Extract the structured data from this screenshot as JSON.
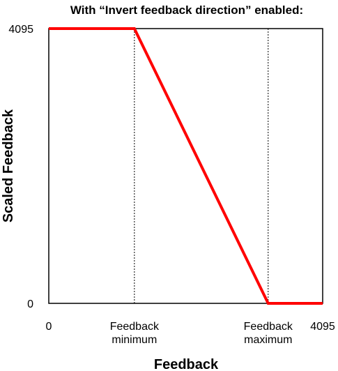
{
  "chart_data": {
    "type": "line",
    "title": "With “Invert feedback direction” enabled:",
    "xlabel": "Feedback",
    "ylabel": "Scaled Feedback",
    "xlim": [
      0,
      4095
    ],
    "ylim": [
      0,
      4095
    ],
    "x_ticks": [
      {
        "value": 0,
        "lines": [
          "0"
        ]
      },
      {
        "value": 1280,
        "lines": [
          "Feedback",
          "minimum"
        ]
      },
      {
        "value": 3280,
        "lines": [
          "Feedback",
          "maximum"
        ]
      },
      {
        "value": 4095,
        "lines": [
          "4095"
        ]
      }
    ],
    "y_ticks": [
      {
        "value": 0,
        "label": "0"
      },
      {
        "value": 4095,
        "label": "4095"
      }
    ],
    "reference_lines_x": [
      1280,
      3280
    ],
    "series": [
      {
        "x": [
          0,
          1280,
          3280,
          4095
        ],
        "y": [
          4095,
          4095,
          0,
          0
        ],
        "color": "#ff0000"
      }
    ],
    "grid": false,
    "legend": "none"
  }
}
